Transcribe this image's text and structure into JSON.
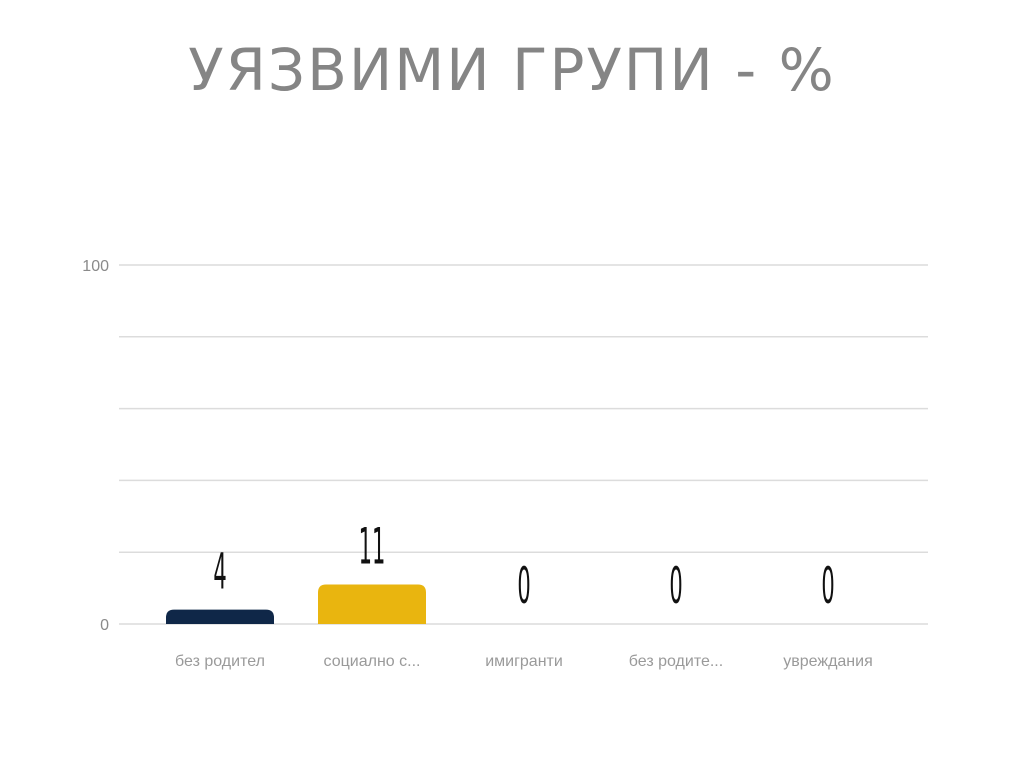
{
  "chart_data": {
    "type": "bar",
    "title": "УЯЗВИМИ ГРУПИ - %",
    "categories": [
      "без родител",
      "социално с...",
      "имигранти",
      "без родите...",
      "увреждания"
    ],
    "values": [
      4,
      11,
      0,
      0,
      0
    ],
    "colors": [
      "#0f2748",
      "#e9b50f",
      "#0f2748",
      "#0f2748",
      "#0f2748"
    ],
    "ylim": [
      0,
      100
    ],
    "yticks": [
      0,
      100
    ],
    "gridlines": [
      0,
      20,
      40,
      60,
      80,
      100
    ],
    "grid": true,
    "xlabel": "",
    "ylabel": ""
  }
}
